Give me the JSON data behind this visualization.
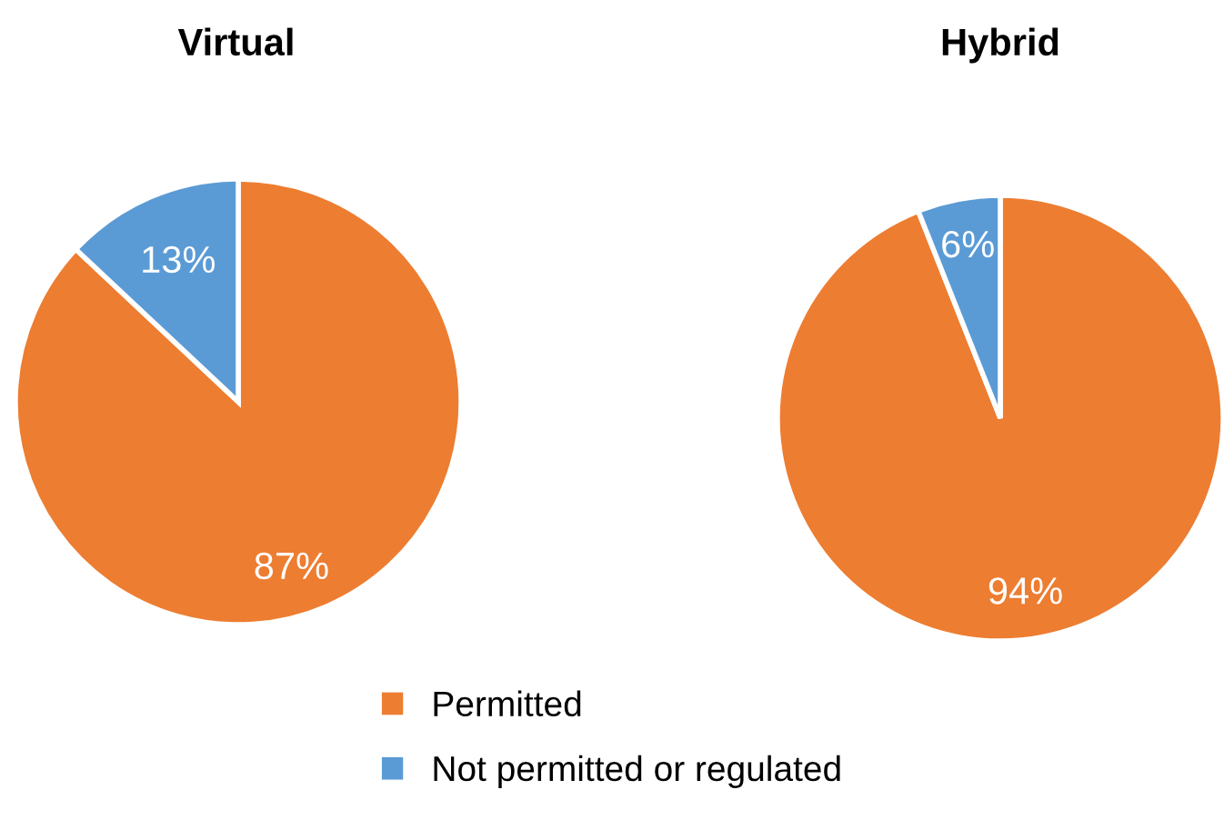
{
  "chart_data": [
    {
      "type": "pie",
      "title": "Virtual",
      "categories": [
        "Permitted",
        "Not permitted or regulated"
      ],
      "values": [
        87,
        13
      ],
      "colors": [
        "#ed7d31",
        "#5b9bd5"
      ],
      "value_labels": [
        "87%",
        "13%"
      ],
      "legend": "bottom"
    },
    {
      "type": "pie",
      "title": "Hybrid",
      "values": [
        94,
        6
      ],
      "colors": [
        "#ed7d31",
        "#5b9bd5"
      ],
      "value_labels": [
        "94%",
        "6%"
      ]
    }
  ]
}
